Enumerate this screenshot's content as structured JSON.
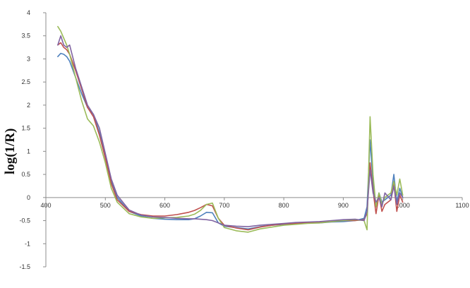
{
  "chart_data": {
    "type": "line",
    "title": "",
    "xlabel": "",
    "ylabel": "log(1/R)",
    "xlim": [
      400,
      1100
    ],
    "ylim": [
      -1.5,
      4
    ],
    "x_ticks": [
      400,
      500,
      600,
      700,
      800,
      900,
      1000,
      1100
    ],
    "y_ticks": [
      -1.5,
      -1,
      -0.5,
      0,
      0.5,
      1,
      1.5,
      2,
      2.5,
      3,
      3.5,
      4
    ],
    "grid": false,
    "legend": "none",
    "series": [
      {
        "color": "#4f81bd",
        "points": [
          [
            420,
            3.05
          ],
          [
            425,
            3.12
          ],
          [
            430,
            3.1
          ],
          [
            435,
            3.05
          ],
          [
            440,
            2.95
          ],
          [
            450,
            2.6
          ],
          [
            460,
            2.25
          ],
          [
            470,
            1.95
          ],
          [
            480,
            1.8
          ],
          [
            490,
            1.4
          ],
          [
            500,
            0.9
          ],
          [
            510,
            0.35
          ],
          [
            520,
            0.0
          ],
          [
            540,
            -0.3
          ],
          [
            560,
            -0.4
          ],
          [
            580,
            -0.45
          ],
          [
            600,
            -0.47
          ],
          [
            620,
            -0.48
          ],
          [
            640,
            -0.48
          ],
          [
            650,
            -0.46
          ],
          [
            660,
            -0.4
          ],
          [
            670,
            -0.32
          ],
          [
            680,
            -0.33
          ],
          [
            690,
            -0.55
          ],
          [
            700,
            -0.62
          ],
          [
            720,
            -0.65
          ],
          [
            740,
            -0.68
          ],
          [
            760,
            -0.63
          ],
          [
            780,
            -0.6
          ],
          [
            800,
            -0.58
          ],
          [
            820,
            -0.57
          ],
          [
            840,
            -0.55
          ],
          [
            860,
            -0.55
          ],
          [
            880,
            -0.53
          ],
          [
            900,
            -0.52
          ],
          [
            920,
            -0.5
          ],
          [
            935,
            -0.45
          ],
          [
            940,
            -0.2
          ],
          [
            945,
            1.25
          ],
          [
            950,
            0.3
          ],
          [
            955,
            -0.2
          ],
          [
            960,
            0.1
          ],
          [
            965,
            -0.1
          ],
          [
            970,
            -0.05
          ],
          [
            980,
            0.05
          ],
          [
            985,
            0.5
          ],
          [
            990,
            -0.1
          ],
          [
            995,
            0.2
          ],
          [
            1000,
            0.0
          ]
        ]
      },
      {
        "color": "#c0504d",
        "points": [
          [
            420,
            3.3
          ],
          [
            425,
            3.35
          ],
          [
            430,
            3.25
          ],
          [
            435,
            3.2
          ],
          [
            440,
            3.1
          ],
          [
            450,
            2.75
          ],
          [
            460,
            2.35
          ],
          [
            470,
            1.95
          ],
          [
            480,
            1.75
          ],
          [
            490,
            1.35
          ],
          [
            500,
            0.85
          ],
          [
            510,
            0.3
          ],
          [
            520,
            -0.05
          ],
          [
            540,
            -0.3
          ],
          [
            560,
            -0.37
          ],
          [
            580,
            -0.4
          ],
          [
            600,
            -0.4
          ],
          [
            620,
            -0.37
          ],
          [
            640,
            -0.32
          ],
          [
            650,
            -0.28
          ],
          [
            660,
            -0.22
          ],
          [
            670,
            -0.15
          ],
          [
            680,
            -0.18
          ],
          [
            690,
            -0.45
          ],
          [
            700,
            -0.6
          ],
          [
            720,
            -0.66
          ],
          [
            740,
            -0.7
          ],
          [
            760,
            -0.64
          ],
          [
            780,
            -0.6
          ],
          [
            800,
            -0.57
          ],
          [
            820,
            -0.56
          ],
          [
            840,
            -0.55
          ],
          [
            860,
            -0.54
          ],
          [
            880,
            -0.52
          ],
          [
            900,
            -0.5
          ],
          [
            920,
            -0.5
          ],
          [
            935,
            -0.48
          ],
          [
            940,
            -0.35
          ],
          [
            945,
            0.75
          ],
          [
            950,
            0.15
          ],
          [
            955,
            -0.35
          ],
          [
            960,
            0.05
          ],
          [
            965,
            -0.3
          ],
          [
            970,
            -0.15
          ],
          [
            980,
            -0.05
          ],
          [
            985,
            0.3
          ],
          [
            990,
            -0.3
          ],
          [
            995,
            0.05
          ],
          [
            1000,
            -0.1
          ]
        ]
      },
      {
        "color": "#9bbb59",
        "points": [
          [
            420,
            3.7
          ],
          [
            425,
            3.6
          ],
          [
            430,
            3.45
          ],
          [
            435,
            3.3
          ],
          [
            440,
            3.1
          ],
          [
            450,
            2.6
          ],
          [
            460,
            2.1
          ],
          [
            470,
            1.7
          ],
          [
            480,
            1.55
          ],
          [
            490,
            1.2
          ],
          [
            500,
            0.75
          ],
          [
            510,
            0.2
          ],
          [
            520,
            -0.1
          ],
          [
            540,
            -0.35
          ],
          [
            560,
            -0.42
          ],
          [
            580,
            -0.45
          ],
          [
            600,
            -0.44
          ],
          [
            620,
            -0.43
          ],
          [
            640,
            -0.4
          ],
          [
            650,
            -0.36
          ],
          [
            660,
            -0.28
          ],
          [
            670,
            -0.15
          ],
          [
            680,
            -0.12
          ],
          [
            690,
            -0.45
          ],
          [
            700,
            -0.65
          ],
          [
            720,
            -0.72
          ],
          [
            740,
            -0.75
          ],
          [
            760,
            -0.68
          ],
          [
            780,
            -0.64
          ],
          [
            800,
            -0.6
          ],
          [
            820,
            -0.58
          ],
          [
            840,
            -0.56
          ],
          [
            860,
            -0.55
          ],
          [
            880,
            -0.52
          ],
          [
            900,
            -0.5
          ],
          [
            920,
            -0.48
          ],
          [
            935,
            -0.5
          ],
          [
            940,
            -0.7
          ],
          [
            945,
            1.75
          ],
          [
            950,
            0.5
          ],
          [
            955,
            -0.2
          ],
          [
            960,
            0.1
          ],
          [
            965,
            -0.15
          ],
          [
            970,
            0.0
          ],
          [
            980,
            0.1
          ],
          [
            985,
            0.35
          ],
          [
            990,
            0.05
          ],
          [
            995,
            0.4
          ],
          [
            1000,
            0.05
          ]
        ]
      },
      {
        "color": "#8064a2",
        "points": [
          [
            420,
            3.3
          ],
          [
            425,
            3.5
          ],
          [
            430,
            3.3
          ],
          [
            435,
            3.25
          ],
          [
            440,
            3.3
          ],
          [
            450,
            2.8
          ],
          [
            460,
            2.4
          ],
          [
            470,
            2.0
          ],
          [
            480,
            1.8
          ],
          [
            490,
            1.5
          ],
          [
            500,
            0.95
          ],
          [
            510,
            0.4
          ],
          [
            520,
            0.05
          ],
          [
            540,
            -0.27
          ],
          [
            560,
            -0.38
          ],
          [
            580,
            -0.42
          ],
          [
            600,
            -0.43
          ],
          [
            620,
            -0.45
          ],
          [
            640,
            -0.46
          ],
          [
            650,
            -0.46
          ],
          [
            660,
            -0.47
          ],
          [
            670,
            -0.48
          ],
          [
            680,
            -0.5
          ],
          [
            690,
            -0.55
          ],
          [
            700,
            -0.6
          ],
          [
            720,
            -0.62
          ],
          [
            740,
            -0.63
          ],
          [
            760,
            -0.6
          ],
          [
            780,
            -0.58
          ],
          [
            800,
            -0.56
          ],
          [
            820,
            -0.54
          ],
          [
            840,
            -0.53
          ],
          [
            860,
            -0.52
          ],
          [
            880,
            -0.5
          ],
          [
            900,
            -0.48
          ],
          [
            920,
            -0.47
          ],
          [
            935,
            -0.5
          ],
          [
            940,
            -0.3
          ],
          [
            945,
            0.6
          ],
          [
            950,
            0.1
          ],
          [
            955,
            -0.1
          ],
          [
            960,
            0.0
          ],
          [
            965,
            -0.2
          ],
          [
            970,
            0.1
          ],
          [
            980,
            -0.05
          ],
          [
            985,
            0.25
          ],
          [
            990,
            -0.15
          ],
          [
            995,
            0.1
          ],
          [
            1000,
            0.0
          ]
        ]
      }
    ]
  }
}
